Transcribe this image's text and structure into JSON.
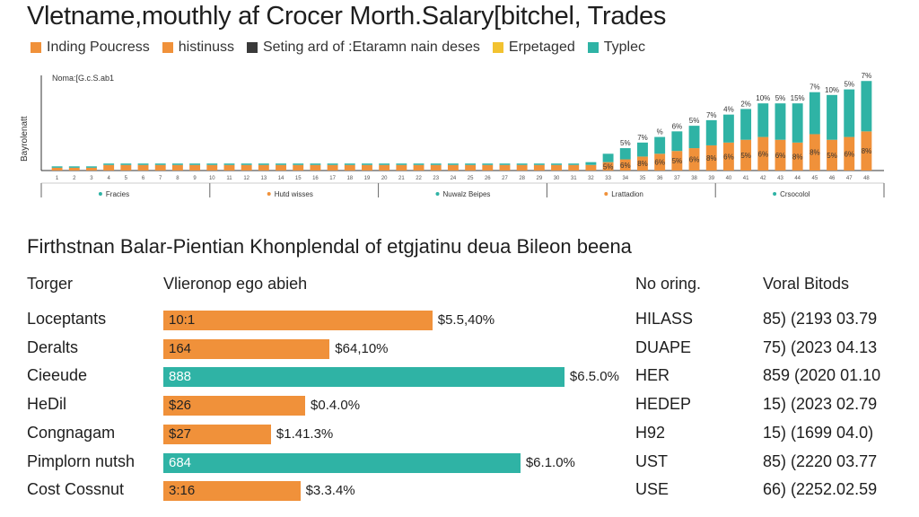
{
  "page": {
    "title": "Vletname,mouthly af Crocer Morth.Salary[bitchel, Trades",
    "subtitle": "Firthstnan Balar-Pientian Khonplendal of etgjatinu deua Bileon beena"
  },
  "colors": {
    "orange": "#f0913a",
    "teal": "#2fb3a5",
    "dark": "#3a3a3a",
    "yellow": "#f2c230"
  },
  "legend": [
    {
      "label": "Inding Poucress",
      "color": "#f0913a"
    },
    {
      "label": "histinuss",
      "color": "#f0913a"
    },
    {
      "label": "Seting ard of :Etaramn nain deses",
      "color": "#3a3a3a"
    },
    {
      "label": "Erpetaged",
      "color": "#f2c230"
    },
    {
      "label": "Typlec",
      "color": "#2fb3a5"
    }
  ],
  "chart_data": [
    {
      "type": "bar",
      "stacked": true,
      "note": "Noma:[G.c.S.ab1",
      "ylabel": "Bayrolenatt",
      "categories": [
        "1",
        "2",
        "3",
        "4",
        "5",
        "6",
        "7",
        "8",
        "9",
        "10",
        "11",
        "12",
        "13",
        "14",
        "15",
        "16",
        "17",
        "18",
        "19",
        "20",
        "21",
        "22",
        "23",
        "24",
        "25",
        "26",
        "27",
        "28",
        "29",
        "30",
        "31",
        "32",
        "33",
        "34",
        "35",
        "36",
        "37",
        "38",
        "39",
        "40",
        "41",
        "42",
        "43",
        "44",
        "45",
        "46",
        "47",
        "48"
      ],
      "series": [
        {
          "color": "#f0913a",
          "values": [
            1,
            1,
            1,
            2,
            2,
            2,
            2,
            2,
            2,
            2,
            2,
            2,
            2,
            2,
            2,
            2,
            2,
            2,
            2,
            2,
            2,
            2,
            2,
            2,
            2,
            2,
            2,
            2,
            2,
            2,
            2,
            2,
            3,
            4,
            5,
            6,
            7,
            8,
            9,
            10,
            11,
            12,
            11,
            10,
            13,
            11,
            12,
            14
          ]
        },
        {
          "color": "#2fb3a5",
          "values": [
            0.5,
            0.5,
            0.5,
            0.5,
            0.5,
            0.5,
            0.5,
            0.5,
            0.5,
            0.5,
            0.5,
            0.5,
            0.5,
            0.5,
            0.5,
            0.5,
            0.5,
            0.5,
            0.5,
            0.5,
            0.5,
            0.5,
            0.5,
            0.5,
            0.5,
            0.5,
            0.5,
            0.5,
            0.5,
            0.5,
            0.5,
            1,
            3,
            4,
            5,
            6,
            7,
            8,
            9,
            10,
            11,
            12,
            13,
            14,
            15,
            16,
            17,
            18
          ]
        }
      ],
      "bar_labels": [
        "",
        "",
        "",
        "",
        "",
        "",
        "",
        "",
        "",
        "",
        "",
        "",
        "",
        "",
        "",
        "",
        "",
        "",
        "",
        "",
        "",
        "",
        "",
        "",
        "",
        "",
        "",
        "",
        "",
        "",
        "",
        "",
        "5%",
        "6%",
        "8%",
        "6%",
        "5%",
        "6%",
        "8%",
        "6%",
        "5%",
        "6%",
        "6%",
        "8%",
        "8%",
        "5%",
        "6%",
        "8%"
      ],
      "top_labels": [
        "",
        "",
        "",
        "",
        "",
        "",
        "",
        "",
        "",
        "",
        "",
        "",
        "",
        "",
        "",
        "",
        "",
        "",
        "",
        "",
        "",
        "",
        "",
        "",
        "",
        "",
        "",
        "",
        "",
        "",
        "",
        "",
        "",
        "5%",
        "7%",
        "%",
        "6%",
        "5%",
        "7%",
        "4%",
        "2%",
        "10%",
        "5%",
        "15%",
        "7%",
        "10%",
        "5%",
        "7%"
      ],
      "x_groups": [
        "Fracies",
        "Hutd wisses",
        "Nuwalz Beipes",
        "Lrattadion",
        "Crsocolol"
      ]
    },
    {
      "type": "table",
      "headers": [
        "Torger",
        "Vlieronop ego abieh",
        "No oring.",
        "Voral Bitods"
      ],
      "rows": [
        {
          "label": "Loceptants",
          "bar_text": "10:1",
          "value": 5.5,
          "pct": "$5.5,40%",
          "code": "HILASS",
          "total": "85) (2193 03.79",
          "color": "orange"
        },
        {
          "label": "Deralts",
          "bar_text": "164",
          "value": 3.4,
          "pct": "$64,10%",
          "code": "DUAPE",
          "total": "75) (2023 04.13",
          "color": "orange"
        },
        {
          "label": "Cieeude",
          "bar_text": "888",
          "value": 8.2,
          "pct": "$6.5.0%",
          "code": "HER",
          "total": "859 (2020 01.10",
          "color": "teal"
        },
        {
          "label": "HeDil",
          "bar_text": "$26",
          "value": 2.9,
          "pct": "$0.4.0%",
          "code": "HEDEP",
          "total": "15) (2023 02.79",
          "color": "orange"
        },
        {
          "label": "Congnagam",
          "bar_text": "$27",
          "value": 2.2,
          "pct": "$1.41.3%",
          "code": "H92",
          "total": "15) (1699 04.0)",
          "color": "orange"
        },
        {
          "label": "Pimplorn nutsh",
          "bar_text": "684",
          "value": 7.3,
          "pct": "$6.1.0%",
          "code": "UST",
          "total": "85) (2220 03.77",
          "color": "teal"
        },
        {
          "label": "Cost Cossnut",
          "bar_text": "3:16",
          "value": 2.8,
          "pct": "$3.3.4%",
          "code": "USE",
          "total": "66) (2252.02.59",
          "color": "orange"
        }
      ]
    }
  ]
}
